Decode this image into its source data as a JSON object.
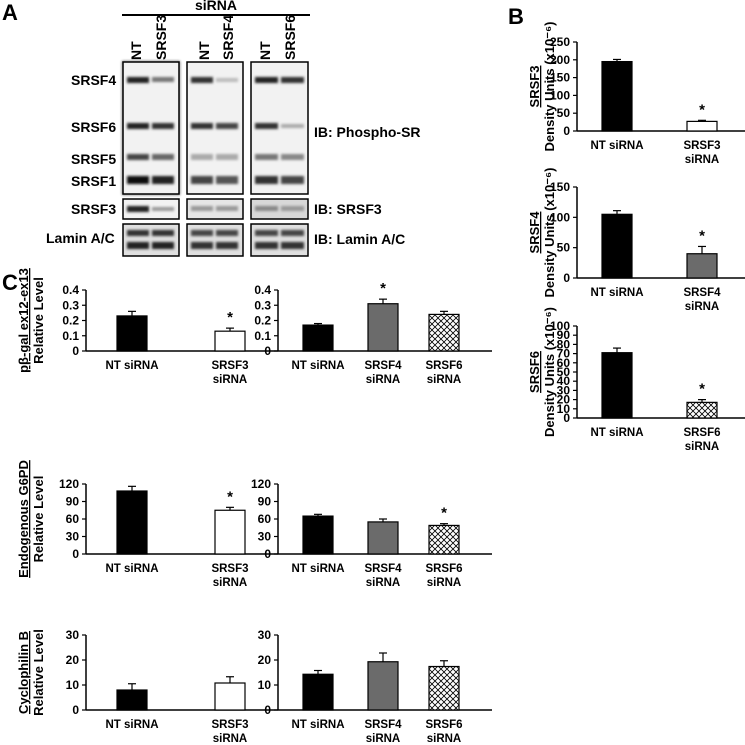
{
  "panels": {
    "a": "A",
    "b": "B",
    "c": "C"
  },
  "blot": {
    "header": "siRNA",
    "groups": [
      {
        "lanes": [
          "NT",
          "SRSF3"
        ]
      },
      {
        "lanes": [
          "NT",
          "SRSF4"
        ]
      },
      {
        "lanes": [
          "NT",
          "SRSF6"
        ]
      }
    ],
    "band_labels": [
      "SRSF4",
      "SRSF6",
      "SRSF5",
      "SRSF1",
      "SRSF3",
      "Lamin A/C"
    ],
    "ib_labels": [
      "IB: Phospho-SR",
      "IB: SRSF3",
      "IB: Lamin A/C"
    ]
  },
  "chart_data": [
    {
      "id": "B1",
      "type": "bar",
      "categories": [
        "NT siRNA",
        "SRSF3 siRNA"
      ],
      "values": [
        195,
        27
      ],
      "errors": [
        6,
        3
      ],
      "ylim": [
        0,
        250
      ],
      "yticks": [
        0,
        50,
        100,
        150,
        200,
        250
      ],
      "ylabel_gene": "SRSF3",
      "ylabel": "Density Units (x10⁻⁶)",
      "significant": [
        false,
        true
      ],
      "fills": [
        "black",
        "white"
      ]
    },
    {
      "id": "B2",
      "type": "bar",
      "categories": [
        "NT siRNA",
        "SRSF4 siRNA"
      ],
      "values": [
        105,
        40
      ],
      "errors": [
        6,
        12
      ],
      "ylim": [
        0,
        150
      ],
      "yticks": [
        0,
        50,
        100,
        150
      ],
      "ylabel_gene": "SRSF4",
      "ylabel": "Density Units (x10⁻⁶)",
      "significant": [
        false,
        true
      ],
      "fills": [
        "black",
        "gray"
      ]
    },
    {
      "id": "B3",
      "type": "bar",
      "categories": [
        "NT siRNA",
        "SRSF6 siRNA"
      ],
      "values": [
        71,
        17
      ],
      "errors": [
        5,
        3
      ],
      "ylim": [
        0,
        100
      ],
      "yticks": [
        0,
        10,
        20,
        30,
        40,
        50,
        60,
        70,
        80,
        90,
        100
      ],
      "ylabel_gene": "SRSF6",
      "ylabel": "Density Units (x10⁻⁶)",
      "significant": [
        false,
        true
      ],
      "fills": [
        "black",
        "hatch"
      ]
    },
    {
      "id": "C1",
      "type": "bar",
      "categories": [
        "NT siRNA",
        "SRSF3 siRNA"
      ],
      "values": [
        0.23,
        0.13
      ],
      "errors": [
        0.03,
        0.02
      ],
      "ylim": [
        0,
        0.4
      ],
      "yticks": [
        0,
        0.1,
        0.2,
        0.3,
        0.4
      ],
      "ylabel_gene": "pβ-gal ex12-ex13",
      "ylabel": "Relative Level",
      "significant": [
        false,
        true
      ],
      "fills": [
        "black",
        "white"
      ]
    },
    {
      "id": "C2",
      "type": "bar",
      "categories": [
        "NT siRNA",
        "SRSF4 siRNA",
        "SRSF6 siRNA"
      ],
      "values": [
        0.17,
        0.31,
        0.24
      ],
      "errors": [
        0.01,
        0.03,
        0.02
      ],
      "ylim": [
        0,
        0.4
      ],
      "yticks": [
        0,
        0.1,
        0.2,
        0.3,
        0.4
      ],
      "significant": [
        false,
        true,
        false
      ],
      "fills": [
        "black",
        "gray",
        "hatch"
      ]
    },
    {
      "id": "C3",
      "type": "bar",
      "categories": [
        "NT siRNA",
        "SRSF3 siRNA"
      ],
      "values": [
        108,
        75
      ],
      "errors": [
        8,
        5
      ],
      "ylim": [
        0,
        120
      ],
      "yticks": [
        0,
        30,
        60,
        90,
        120
      ],
      "ylabel_gene": "Endogenous G6PD",
      "ylabel": "Relative Level",
      "significant": [
        false,
        true
      ],
      "fills": [
        "black",
        "white"
      ]
    },
    {
      "id": "C4",
      "type": "bar",
      "categories": [
        "NT siRNA",
        "SRSF4 siRNA",
        "SRSF6 siRNA"
      ],
      "values": [
        65,
        55,
        49
      ],
      "errors": [
        3,
        5,
        3
      ],
      "ylim": [
        0,
        120
      ],
      "yticks": [
        0,
        30,
        60,
        90,
        120
      ],
      "significant": [
        false,
        false,
        true
      ],
      "fills": [
        "black",
        "gray",
        "hatch"
      ]
    },
    {
      "id": "C5",
      "type": "bar",
      "categories": [
        "NT siRNA",
        "SRSF3 siRNA"
      ],
      "values": [
        8,
        10.8
      ],
      "errors": [
        2.5,
        2.5
      ],
      "ylim": [
        0,
        30
      ],
      "yticks": [
        0,
        10,
        20,
        30
      ],
      "ylabel_gene": "Cyclophilin B",
      "ylabel": "Relative Level",
      "significant": [
        false,
        false
      ],
      "fills": [
        "black",
        "white"
      ]
    },
    {
      "id": "C6",
      "type": "bar",
      "categories": [
        "NT siRNA",
        "SRSF4 siRNA",
        "SRSF6 siRNA"
      ],
      "values": [
        14.3,
        19.3,
        17.4
      ],
      "errors": [
        1.5,
        3.5,
        2.3
      ],
      "ylim": [
        0,
        30
      ],
      "yticks": [
        0,
        10,
        20,
        30
      ],
      "significant": [
        false,
        false,
        false
      ],
      "fills": [
        "black",
        "gray",
        "hatch"
      ]
    }
  ]
}
